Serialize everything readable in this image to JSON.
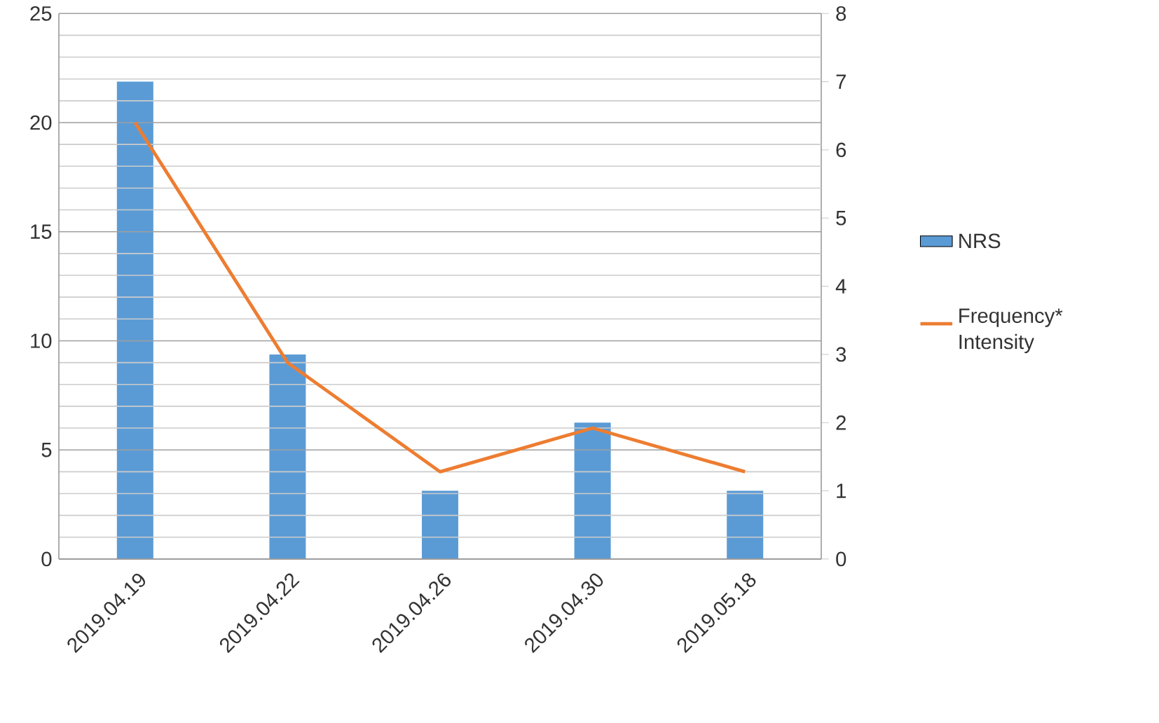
{
  "chart_data": {
    "type": "bar",
    "categories": [
      "2019.04.19",
      "2019.04.22",
      "2019.04.26",
      "2019.04.30",
      "2019.05.18"
    ],
    "series": [
      {
        "name": "NRS",
        "axis": "y2",
        "color": "#5b9bd5",
        "values": [
          7,
          3,
          1,
          2,
          1
        ]
      },
      {
        "name": "Frequency* Intensity",
        "type": "line",
        "color": "#ed7d31",
        "values": [
          20,
          9,
          4,
          6,
          4
        ]
      }
    ],
    "ylim": [
      0,
      25
    ],
    "yticks": [
      0,
      5,
      10,
      15,
      20,
      25
    ],
    "y2lim": [
      0,
      8
    ],
    "y2ticks": [
      0,
      1,
      2,
      3,
      4,
      5,
      6,
      7,
      8
    ],
    "grid": "y",
    "legend": "right"
  }
}
